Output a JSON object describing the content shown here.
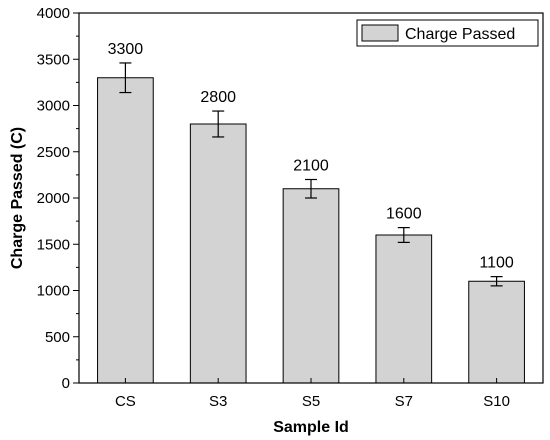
{
  "chart_data": {
    "type": "bar",
    "categories": [
      "CS",
      "S3",
      "S5",
      "S7",
      "S10"
    ],
    "series": [
      {
        "name": "Charge Passed",
        "values": [
          3300,
          2800,
          2100,
          1600,
          1100
        ],
        "errors": [
          160,
          140,
          100,
          80,
          50
        ],
        "labels": [
          "3300",
          "2800",
          "2100",
          "1600",
          "1100"
        ],
        "color": "#d3d3d3"
      }
    ],
    "xlabel": "Sample Id",
    "ylabel": "Charge Passed (C)",
    "ylim": [
      0,
      4000
    ],
    "yticks": [
      0,
      500,
      1000,
      1500,
      2000,
      2500,
      3000,
      3500,
      4000
    ],
    "ytick_labels": [
      "0",
      "500",
      "1000",
      "1500",
      "2000",
      "2500",
      "3000",
      "3500",
      "4000"
    ],
    "grid": false,
    "legend_position": "top-right"
  }
}
